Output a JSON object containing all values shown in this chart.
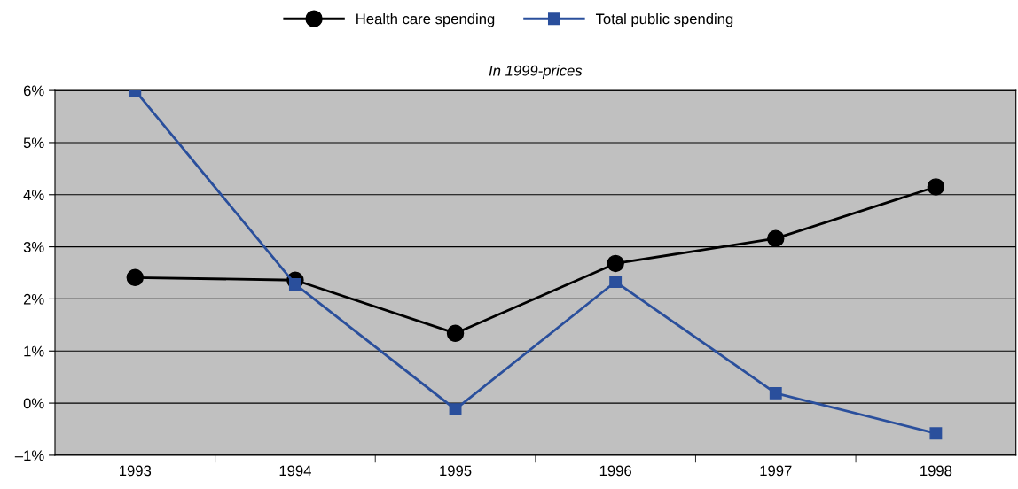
{
  "chart_data": {
    "type": "line",
    "subtitle": "In 1999-prices",
    "categories": [
      "1993",
      "1994",
      "1995",
      "1996",
      "1997",
      "1998"
    ],
    "series": [
      {
        "name": "Health care spending",
        "color": "#000000",
        "marker": "circle",
        "values": [
          2.41,
          2.36,
          1.34,
          2.68,
          3.16,
          4.15
        ]
      },
      {
        "name": "Total public spending",
        "color": "#2a4f9c",
        "marker": "square",
        "values": [
          6.0,
          2.28,
          -0.12,
          2.33,
          0.19,
          -0.58
        ]
      }
    ],
    "ylim": [
      -1,
      6
    ],
    "yticks": [
      {
        "value": -1,
        "label": "–1%"
      },
      {
        "value": 0,
        "label": "0%"
      },
      {
        "value": 1,
        "label": "1%"
      },
      {
        "value": 2,
        "label": "2%"
      },
      {
        "value": 3,
        "label": "3%"
      },
      {
        "value": 4,
        "label": "4%"
      },
      {
        "value": 5,
        "label": "5%"
      },
      {
        "value": 6,
        "label": "6%"
      }
    ],
    "grid": "y",
    "legend": "top",
    "line_style": "solid"
  }
}
